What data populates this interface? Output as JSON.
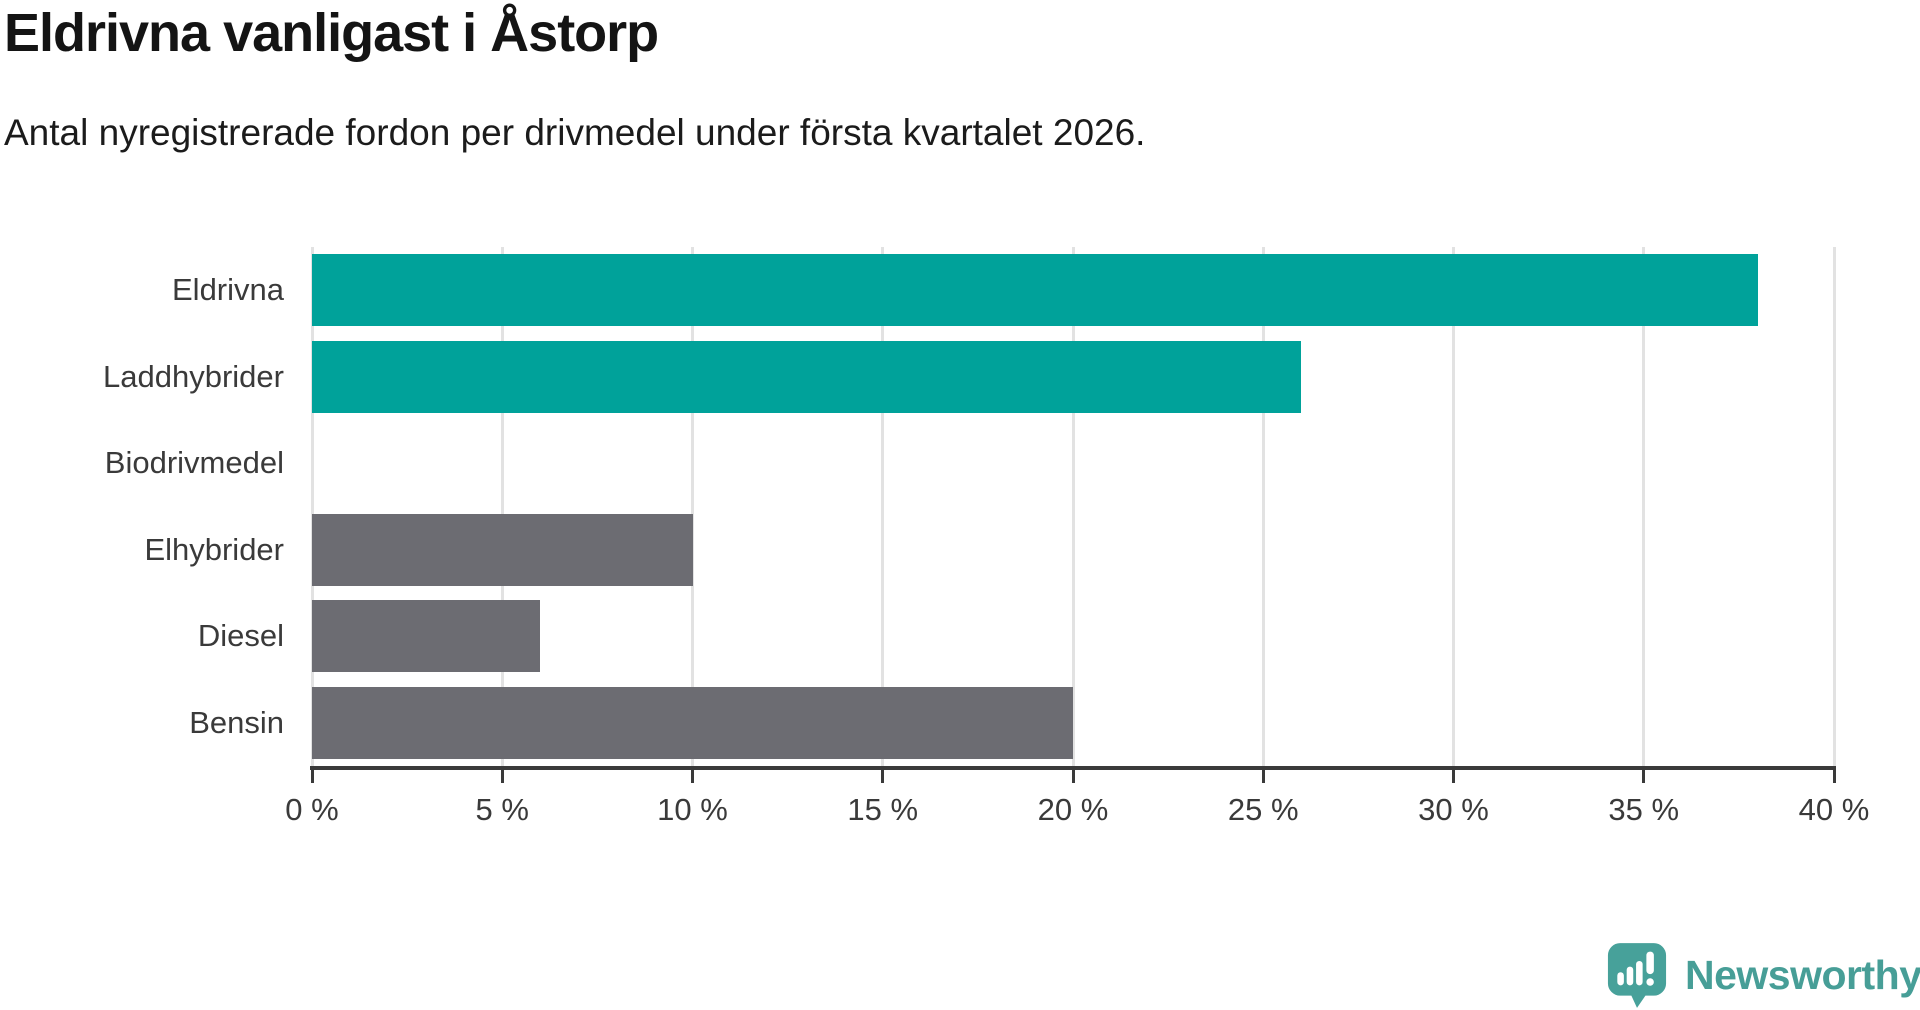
{
  "header": {
    "title": "Eldrivna vanligast i Åstorp",
    "subtitle": "Antal nyregistrerade fordon per drivmedel under första kvartalet 2026."
  },
  "chart_data": {
    "type": "bar",
    "orientation": "horizontal",
    "title": "Eldrivna vanligast i Åstorp",
    "subtitle": "Antal nyregistrerade fordon per drivmedel under första kvartalet 2026.",
    "categories": [
      "Eldrivna",
      "Laddhybrider",
      "Biodrivmedel",
      "Elhybrider",
      "Diesel",
      "Bensin"
    ],
    "values": [
      38,
      26,
      0,
      10,
      6,
      20
    ],
    "unit": "%",
    "xlim": [
      0,
      40
    ],
    "x_ticks": [
      "0 %",
      "5 %",
      "10 %",
      "15 %",
      "20 %",
      "25 %",
      "30 %",
      "35 %",
      "40 %"
    ],
    "bar_colors": [
      "#00a29a",
      "#00a29a",
      "#6c6c72",
      "#6c6c72",
      "#6c6c72",
      "#6c6c72"
    ],
    "grid": true,
    "legend": "none",
    "xlabel": "",
    "ylabel": ""
  },
  "colors": {
    "teal": "#00a29a",
    "gray": "#6c6c72",
    "axis": "#3a3a3a",
    "axis_text": "#3a3a3a",
    "grid": "#e2e2e2",
    "logo": "#479e97",
    "logo_icon": "#47a19a"
  },
  "footer": {
    "brand": "Newsworthy"
  }
}
